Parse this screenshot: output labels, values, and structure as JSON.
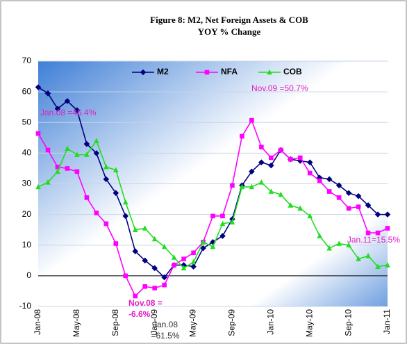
{
  "chart_data": {
    "type": "line",
    "title": "Figure 8: M2, Net Foreign Assets & COB",
    "subtitle": "YOY % Change",
    "categories": [
      "Jan-08",
      null,
      null,
      null,
      "May-08",
      null,
      null,
      null,
      "Sep-08",
      null,
      null,
      null,
      "Jan-09",
      null,
      null,
      null,
      "May-09",
      null,
      null,
      null,
      "Sep-09",
      null,
      null,
      null,
      "Jan-10",
      null,
      null,
      null,
      "May-10",
      null,
      null,
      null,
      "Sep-10",
      null,
      null,
      null,
      "Jan-11"
    ],
    "series": [
      {
        "name": "M2",
        "color": "#000080",
        "marker": "diamond",
        "values": [
          61.5,
          59.5,
          54.5,
          57,
          54,
          43,
          40,
          31.5,
          27,
          19.5,
          8,
          5,
          2.5,
          -0.5,
          3.5,
          3.5,
          3,
          9,
          11,
          13,
          18.5,
          29.5,
          34,
          37,
          36,
          41,
          38,
          37.5,
          37,
          32,
          31.5,
          29.5,
          27,
          26,
          23,
          20,
          20
        ]
      },
      {
        "name": "NFA",
        "color": "#ff00ff",
        "marker": "square",
        "values": [
          46.4,
          41,
          35.5,
          35,
          34,
          25.5,
          20.5,
          17,
          10.5,
          0,
          -6.6,
          -3.5,
          -4,
          -3,
          3.5,
          5.5,
          7.5,
          11,
          19.5,
          19.5,
          29.5,
          45.5,
          50.7,
          42,
          38.5,
          41,
          38,
          38.5,
          33.5,
          31,
          27.5,
          25.5,
          22,
          22.5,
          14,
          14,
          15.5
        ]
      },
      {
        "name": "COB",
        "color": "#22dd22",
        "marker": "triangle",
        "values": [
          29,
          30.5,
          34,
          41.5,
          39.5,
          39.5,
          44,
          35.5,
          34.5,
          24,
          15,
          15.5,
          12,
          9.5,
          6,
          2.5,
          4.5,
          11,
          9.5,
          17,
          17.5,
          29,
          29,
          30.5,
          27.5,
          26.5,
          23,
          22,
          19.5,
          13,
          9,
          10.5,
          10,
          5.5,
          6.5,
          3,
          3.5
        ]
      }
    ],
    "ylim": [
      -10,
      70
    ],
    "yticks": [
      -10,
      0,
      10,
      20,
      30,
      40,
      50,
      60,
      70
    ],
    "grid": true,
    "legend": "top",
    "annotations": [
      {
        "lines": [
          "Jan.08 =46.4%"
        ],
        "color": "#e020c0"
      },
      {
        "lines": [
          "Nov.08 =",
          "-6.6%"
        ],
        "color": "#e020c0"
      },
      {
        "lines": [
          "Jan.08",
          "=61.5%"
        ],
        "color": "#333333"
      },
      {
        "lines": [
          "Nov.09 =50.7%"
        ],
        "color": "#e020c0"
      },
      {
        "lines": [
          "Jan.11=15.5%"
        ],
        "color": "#e020c0"
      }
    ]
  }
}
